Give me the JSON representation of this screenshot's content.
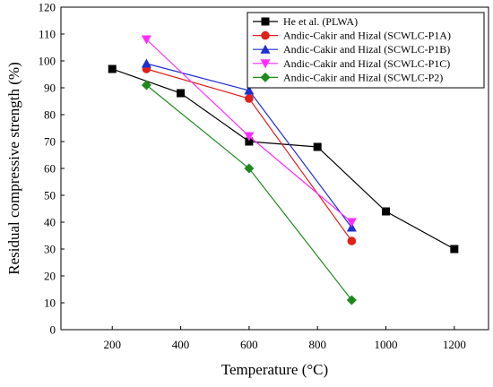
{
  "chart_data": {
    "type": "line",
    "xlabel": "Temperature (°C)",
    "ylabel": "Residual compressive strength (%)",
    "xlim": [
      50,
      1300
    ],
    "ylim": [
      0,
      120
    ],
    "xticks": [
      200,
      400,
      600,
      800,
      1000,
      1200
    ],
    "yticks": [
      0,
      10,
      20,
      30,
      40,
      50,
      60,
      70,
      80,
      90,
      100,
      110,
      120
    ],
    "grid": false,
    "legend_position": "top-right",
    "series": [
      {
        "name": "He et al. (PLWA)",
        "color": "#000000",
        "marker": "square",
        "x": [
          200,
          400,
          600,
          800,
          1000,
          1200
        ],
        "y": [
          97,
          88,
          70,
          68,
          44,
          30
        ]
      },
      {
        "name": "Andic-Cakir and Hizal (SCWLC-P1A)",
        "color": "#e0201b",
        "marker": "circle",
        "x": [
          300,
          600,
          900
        ],
        "y": [
          97,
          86,
          33
        ]
      },
      {
        "name": "Andic-Cakir and Hizal (SCWLC-P1B)",
        "color": "#1f2fd0",
        "marker": "triangle-up",
        "x": [
          300,
          600,
          900
        ],
        "y": [
          99,
          89,
          38
        ]
      },
      {
        "name": "Andic-Cakir and Hizal (SCWLC-P1C)",
        "color": "#ff2bff",
        "marker": "triangle-down",
        "x": [
          300,
          600,
          900
        ],
        "y": [
          108,
          72,
          40
        ]
      },
      {
        "name": "Andic-Cakir and Hizal (SCWLC-P2)",
        "color": "#1e8a1e",
        "marker": "diamond",
        "x": [
          300,
          600,
          900
        ],
        "y": [
          91,
          60,
          11
        ]
      }
    ]
  }
}
